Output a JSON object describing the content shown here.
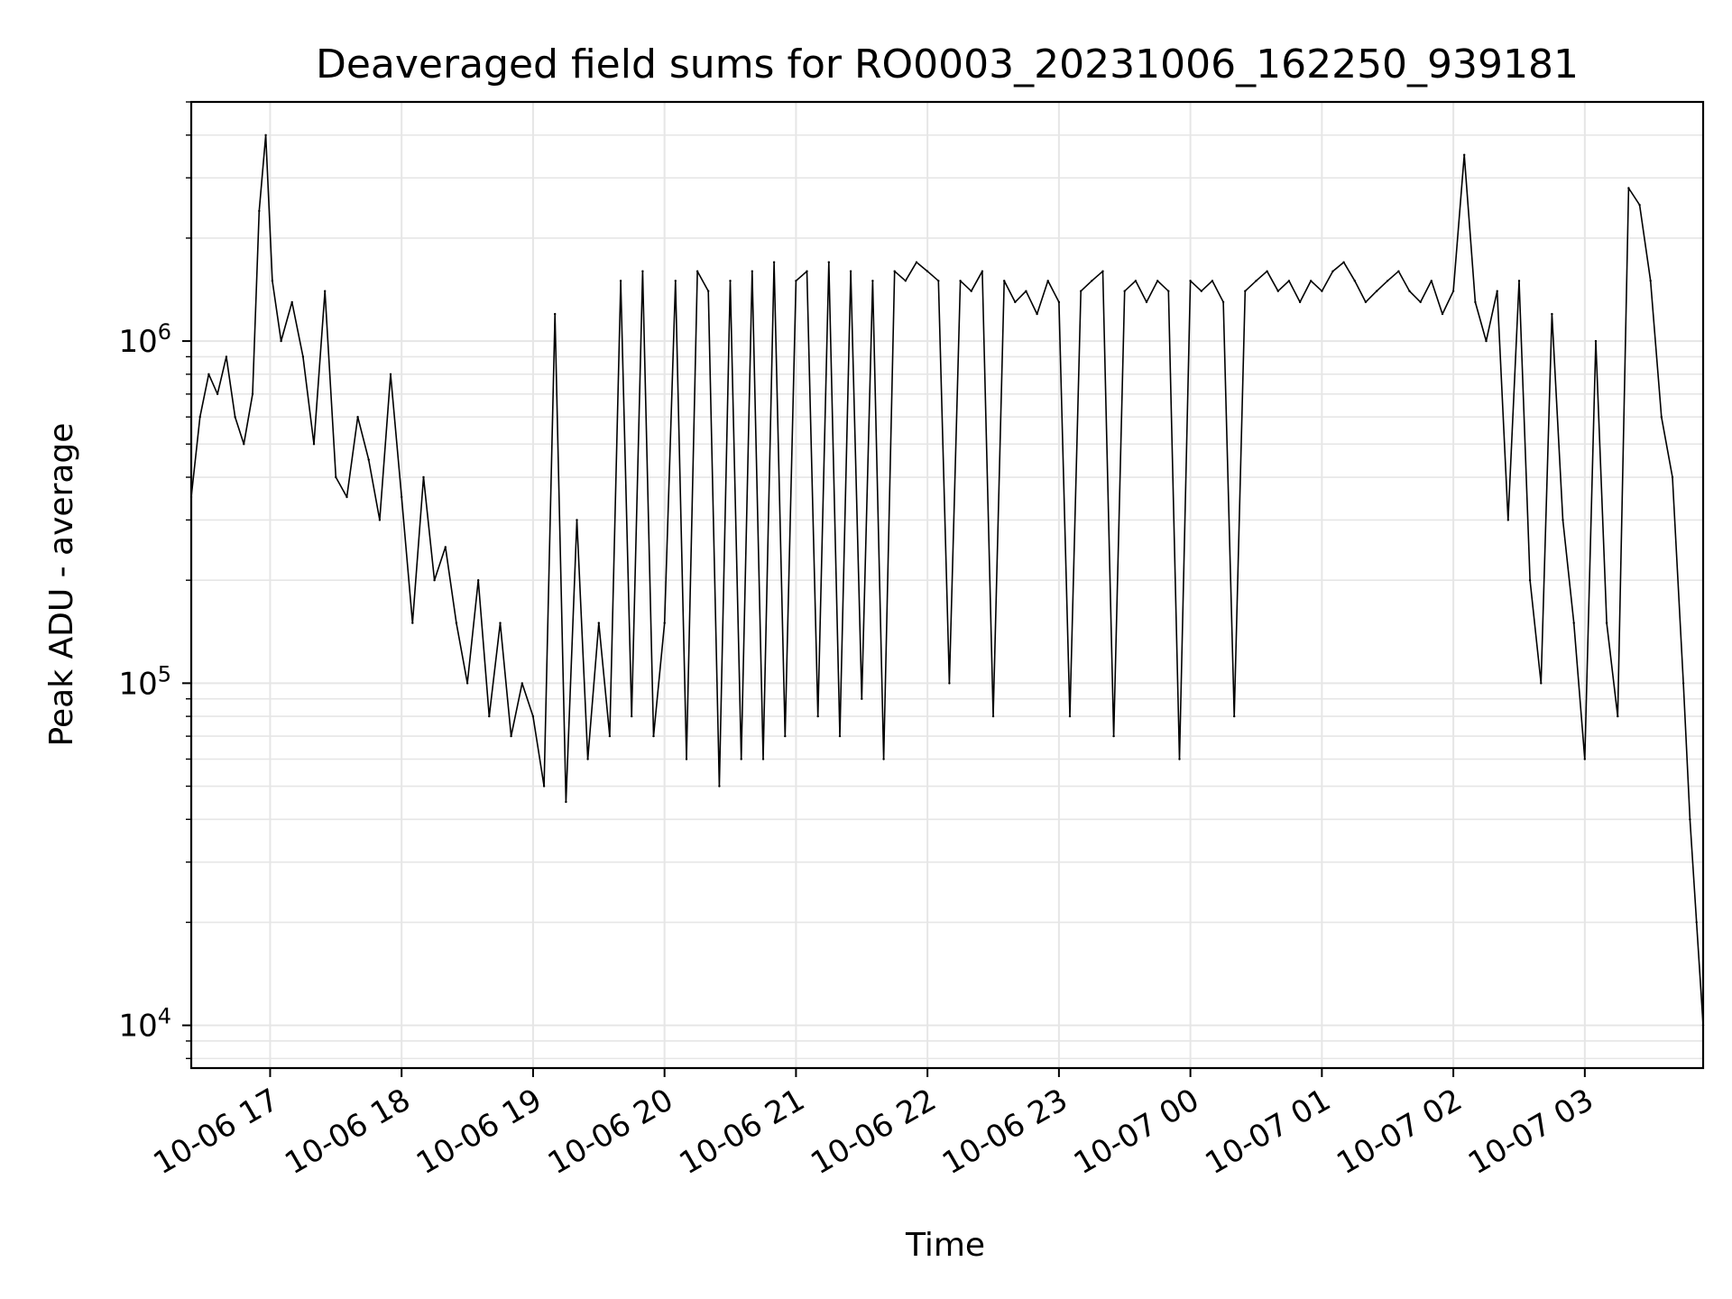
{
  "chart_data": {
    "type": "line",
    "title": "Deaveraged field sums for RO0003_20231006_162250_939181",
    "xlabel": "Time",
    "ylabel": "Peak ADU - average",
    "yscale": "log",
    "ylim": [
      7500,
      5000000
    ],
    "xlim": [
      "2023-10-06 16:24",
      "2023-10-07 03:54"
    ],
    "grid": true,
    "legend": "none",
    "line_color": "#000000",
    "x_ticks": [
      "10-06 17",
      "10-06 18",
      "10-06 19",
      "10-06 20",
      "10-06 21",
      "10-06 22",
      "10-06 23",
      "10-07 00",
      "10-07 01",
      "10-07 02",
      "10-07 03"
    ],
    "y_ticks": [
      {
        "value": 10000,
        "base": "10",
        "exp": "4"
      },
      {
        "value": 100000,
        "base": "10",
        "exp": "5"
      },
      {
        "value": 1000000,
        "base": "10",
        "exp": "6"
      }
    ],
    "series": [
      {
        "x": [
          "2023-10-06 16:24",
          "2023-10-06 16:28",
          "2023-10-06 16:32",
          "2023-10-06 16:36",
          "2023-10-06 16:40",
          "2023-10-06 16:44",
          "2023-10-06 16:48",
          "2023-10-06 16:52",
          "2023-10-06 16:55",
          "2023-10-06 16:58",
          "2023-10-06 17:01",
          "2023-10-06 17:05",
          "2023-10-06 17:10",
          "2023-10-06 17:15",
          "2023-10-06 17:20",
          "2023-10-06 17:25",
          "2023-10-06 17:30",
          "2023-10-06 17:35",
          "2023-10-06 17:40",
          "2023-10-06 17:45",
          "2023-10-06 17:50",
          "2023-10-06 17:55",
          "2023-10-06 18:00",
          "2023-10-06 18:05",
          "2023-10-06 18:10",
          "2023-10-06 18:15",
          "2023-10-06 18:20",
          "2023-10-06 18:25",
          "2023-10-06 18:30",
          "2023-10-06 18:35",
          "2023-10-06 18:40",
          "2023-10-06 18:45",
          "2023-10-06 18:50",
          "2023-10-06 18:55",
          "2023-10-06 19:00",
          "2023-10-06 19:05",
          "2023-10-06 19:10",
          "2023-10-06 19:15",
          "2023-10-06 19:20",
          "2023-10-06 19:25",
          "2023-10-06 19:30",
          "2023-10-06 19:35",
          "2023-10-06 19:40",
          "2023-10-06 19:45",
          "2023-10-06 19:50",
          "2023-10-06 19:55",
          "2023-10-06 20:00",
          "2023-10-06 20:05",
          "2023-10-06 20:10",
          "2023-10-06 20:15",
          "2023-10-06 20:20",
          "2023-10-06 20:25",
          "2023-10-06 20:30",
          "2023-10-06 20:35",
          "2023-10-06 20:40",
          "2023-10-06 20:45",
          "2023-10-06 20:50",
          "2023-10-06 20:55",
          "2023-10-06 21:00",
          "2023-10-06 21:05",
          "2023-10-06 21:10",
          "2023-10-06 21:15",
          "2023-10-06 21:20",
          "2023-10-06 21:25",
          "2023-10-06 21:30",
          "2023-10-06 21:35",
          "2023-10-06 21:40",
          "2023-10-06 21:45",
          "2023-10-06 21:50",
          "2023-10-06 21:55",
          "2023-10-06 22:00",
          "2023-10-06 22:05",
          "2023-10-06 22:10",
          "2023-10-06 22:15",
          "2023-10-06 22:20",
          "2023-10-06 22:25",
          "2023-10-06 22:30",
          "2023-10-06 22:35",
          "2023-10-06 22:40",
          "2023-10-06 22:45",
          "2023-10-06 22:50",
          "2023-10-06 22:55",
          "2023-10-06 23:00",
          "2023-10-06 23:05",
          "2023-10-06 23:10",
          "2023-10-06 23:15",
          "2023-10-06 23:20",
          "2023-10-06 23:25",
          "2023-10-06 23:30",
          "2023-10-06 23:35",
          "2023-10-06 23:40",
          "2023-10-06 23:45",
          "2023-10-06 23:50",
          "2023-10-06 23:55",
          "2023-10-07 00:00",
          "2023-10-07 00:05",
          "2023-10-07 00:10",
          "2023-10-07 00:15",
          "2023-10-07 00:20",
          "2023-10-07 00:25",
          "2023-10-07 00:30",
          "2023-10-07 00:35",
          "2023-10-07 00:40",
          "2023-10-07 00:45",
          "2023-10-07 00:50",
          "2023-10-07 00:55",
          "2023-10-07 01:00",
          "2023-10-07 01:05",
          "2023-10-07 01:10",
          "2023-10-07 01:15",
          "2023-10-07 01:20",
          "2023-10-07 01:25",
          "2023-10-07 01:30",
          "2023-10-07 01:35",
          "2023-10-07 01:40",
          "2023-10-07 01:45",
          "2023-10-07 01:50",
          "2023-10-07 01:55",
          "2023-10-07 02:00",
          "2023-10-07 02:05",
          "2023-10-07 02:10",
          "2023-10-07 02:15",
          "2023-10-07 02:20",
          "2023-10-07 02:25",
          "2023-10-07 02:30",
          "2023-10-07 02:35",
          "2023-10-07 02:40",
          "2023-10-07 02:45",
          "2023-10-07 02:50",
          "2023-10-07 02:55",
          "2023-10-07 03:00",
          "2023-10-07 03:05",
          "2023-10-07 03:10",
          "2023-10-07 03:15",
          "2023-10-07 03:20",
          "2023-10-07 03:25",
          "2023-10-07 03:30",
          "2023-10-07 03:35",
          "2023-10-07 03:40",
          "2023-10-07 03:45",
          "2023-10-07 03:48",
          "2023-10-07 03:51",
          "2023-10-07 03:54"
        ],
        "y": [
          350000,
          600000,
          800000,
          700000,
          900000,
          600000,
          500000,
          700000,
          2400000,
          4000000,
          1500000,
          1000000,
          1300000,
          900000,
          500000,
          1400000,
          400000,
          350000,
          600000,
          450000,
          300000,
          800000,
          350000,
          150000,
          400000,
          200000,
          250000,
          150000,
          100000,
          200000,
          80000,
          150000,
          70000,
          100000,
          80000,
          50000,
          1200000,
          45000,
          300000,
          60000,
          150000,
          70000,
          1500000,
          80000,
          1600000,
          70000,
          150000,
          1500000,
          60000,
          1600000,
          1400000,
          50000,
          1500000,
          60000,
          1600000,
          60000,
          1700000,
          70000,
          1500000,
          1600000,
          80000,
          1700000,
          70000,
          1600000,
          90000,
          1500000,
          60000,
          1600000,
          1500000,
          1700000,
          1600000,
          1500000,
          100000,
          1500000,
          1400000,
          1600000,
          80000,
          1500000,
          1300000,
          1400000,
          1200000,
          1500000,
          1300000,
          80000,
          1400000,
          1500000,
          1600000,
          70000,
          1400000,
          1500000,
          1300000,
          1500000,
          1400000,
          60000,
          1500000,
          1400000,
          1500000,
          1300000,
          80000,
          1400000,
          1500000,
          1600000,
          1400000,
          1500000,
          1300000,
          1500000,
          1400000,
          1600000,
          1700000,
          1500000,
          1300000,
          1400000,
          1500000,
          1600000,
          1400000,
          1300000,
          1500000,
          1200000,
          1400000,
          3500000,
          1300000,
          1000000,
          1400000,
          300000,
          1500000,
          200000,
          100000,
          1200000,
          300000,
          150000,
          60000,
          1000000,
          150000,
          80000,
          2800000,
          2500000,
          1500000,
          600000,
          400000,
          100000,
          40000,
          20000,
          10000
        ]
      }
    ]
  }
}
